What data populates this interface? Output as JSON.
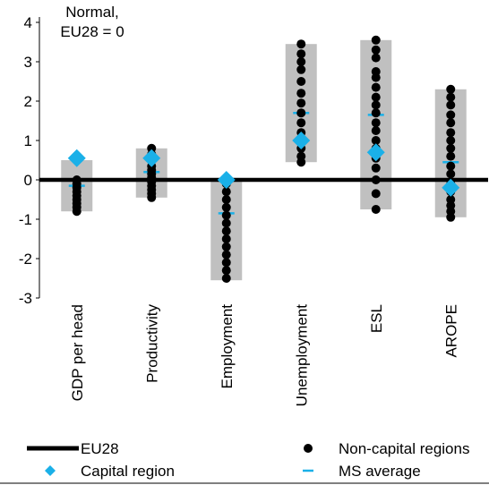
{
  "chart_data": {
    "type": "scatter",
    "unit_label": [
      "Normal,",
      "EU28 = 0"
    ],
    "ylim": [
      -3,
      4
    ],
    "yticks": [
      -3,
      -2,
      -1,
      0,
      1,
      2,
      3,
      4
    ],
    "grid": false,
    "categories": [
      "GDP per head",
      "Productivity",
      "Employment",
      "Unemployment",
      "ESL",
      "AROPE"
    ],
    "ranges": [
      {
        "min": -0.8,
        "max": 0.5
      },
      {
        "min": -0.45,
        "max": 0.8
      },
      {
        "min": -2.55,
        "max": 0.0
      },
      {
        "min": 0.45,
        "max": 3.45
      },
      {
        "min": -0.75,
        "max": 3.55
      },
      {
        "min": -0.95,
        "max": 2.3
      }
    ],
    "series": [
      {
        "name": "EU28",
        "type": "line",
        "color": "#000000",
        "value": 0
      },
      {
        "name": "Non-capital regions",
        "type": "dots",
        "color": "#000000",
        "values": [
          [
            -0.8,
            -0.7,
            -0.6,
            -0.5,
            -0.4,
            -0.3,
            -0.2,
            -0.1,
            0.0
          ],
          [
            -0.45,
            -0.35,
            -0.25,
            -0.15,
            -0.05,
            0.05,
            0.15,
            0.25,
            0.35,
            0.5,
            0.65,
            0.8
          ],
          [
            -2.5,
            -2.3,
            -2.1,
            -1.9,
            -1.7,
            -1.5,
            -1.3,
            -1.1,
            -0.9,
            -0.7,
            -0.5,
            -0.3,
            -0.1
          ],
          [
            0.45,
            0.6,
            0.8,
            1.0,
            1.2,
            1.45,
            1.7,
            1.95,
            2.2,
            2.5,
            2.8,
            3.0,
            3.2,
            3.45
          ],
          [
            -0.75,
            -0.35,
            0.0,
            0.3,
            0.55,
            0.8,
            1.0,
            1.25,
            1.45,
            1.7,
            1.9,
            2.1,
            2.35,
            2.6,
            2.75,
            3.1,
            3.3,
            3.55
          ],
          [
            -0.95,
            -0.8,
            -0.65,
            -0.5,
            -0.3,
            -0.1,
            0.15,
            0.35,
            0.6,
            0.8,
            1.0,
            1.2,
            1.45,
            1.65,
            1.9,
            2.1,
            2.3
          ]
        ]
      },
      {
        "name": "Capital region",
        "type": "diamond",
        "color": "#1ab0e8",
        "values": [
          0.55,
          0.55,
          0.0,
          1.0,
          0.7,
          -0.2
        ]
      },
      {
        "name": "MS average",
        "type": "dash",
        "color": "#1ab0e8",
        "values": [
          -0.15,
          0.2,
          -0.85,
          1.7,
          1.65,
          0.45
        ]
      }
    ],
    "legend": {
      "position": "bottom",
      "items": [
        "EU28",
        "Non-capital regions",
        "Capital region",
        "MS average"
      ]
    },
    "colors": {
      "range_band": "#c0c0c0",
      "axis": "#000000"
    }
  }
}
